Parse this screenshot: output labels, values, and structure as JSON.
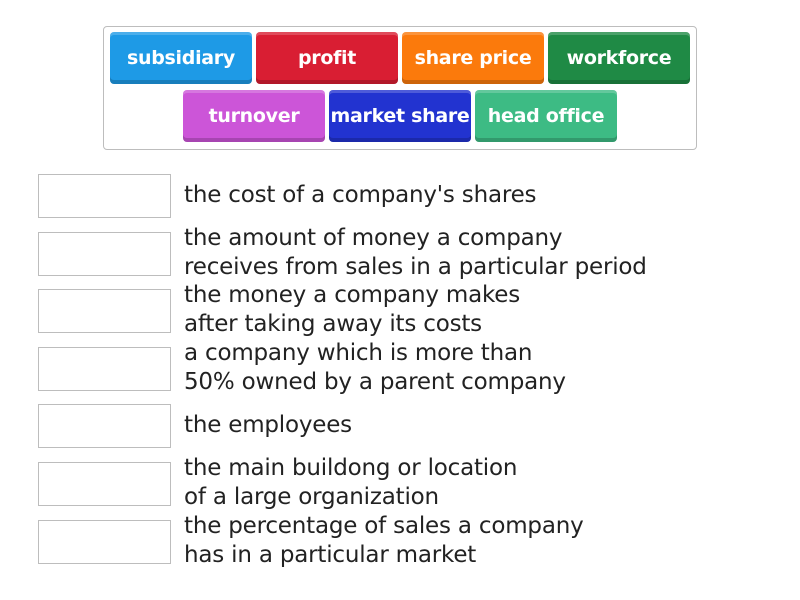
{
  "tiles": [
    {
      "label": "subsidiary",
      "color": "#1e9ae6"
    },
    {
      "label": "profit",
      "color": "#d91e33"
    },
    {
      "label": "share price",
      "color": "#fb7a0c"
    },
    {
      "label": "workforce",
      "color": "#1f8a45"
    },
    {
      "label": "turnover",
      "color": "#cc55d8"
    },
    {
      "label": "market share",
      "color": "#2233d0"
    },
    {
      "label": "head office",
      "color": "#3dbb84"
    }
  ],
  "definitions": [
    {
      "lines": [
        "the cost of a company's shares"
      ]
    },
    {
      "lines": [
        "the amount of money a company",
        "receives from sales in a particular period"
      ]
    },
    {
      "lines": [
        "the money a company makes",
        "after taking away its costs"
      ]
    },
    {
      "lines": [
        "a company which is more than",
        "50% owned by a parent company"
      ]
    },
    {
      "lines": [
        "the employees"
      ]
    },
    {
      "lines": [
        "the main buildong or location",
        "of a large organization"
      ]
    },
    {
      "lines": [
        "the percentage of sales a company",
        "has in a particular market"
      ]
    }
  ]
}
